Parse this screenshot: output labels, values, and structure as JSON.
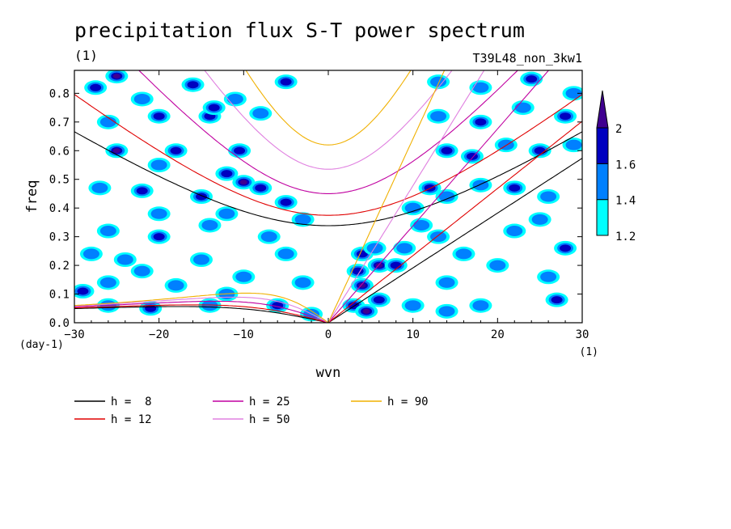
{
  "chart_data": {
    "type": "heatmap",
    "title": "precipitation flux S-T power spectrum",
    "subtitle_left": "(1)",
    "subtitle_right": "T39L48_non_3kw1",
    "xlabel": "wvn",
    "ylabel": "freq",
    "x_unit": "(1)",
    "y_unit": "(day-1)",
    "xlim": [
      -30,
      30
    ],
    "ylim": [
      0,
      0.88
    ],
    "xticks": [
      -30,
      -20,
      -10,
      0,
      10,
      20,
      30
    ],
    "yticks": [
      0.0,
      0.1,
      0.2,
      0.3,
      0.4,
      0.5,
      0.6,
      0.7,
      0.8
    ],
    "colorbar": {
      "levels": [
        1.2,
        1.4,
        1.6,
        2
      ],
      "labels": [
        "1.2",
        "1.4",
        "1.6",
        "2"
      ],
      "colors": [
        "#00ffff",
        "#0080ff",
        "#0000c0",
        "#400090"
      ]
    },
    "contour_patches": [
      {
        "x": -27.5,
        "y": 0.82,
        "level": 3
      },
      {
        "x": -25,
        "y": 0.86,
        "level": 4
      },
      {
        "x": -22,
        "y": 0.78,
        "level": 2
      },
      {
        "x": -16,
        "y": 0.83,
        "level": 3
      },
      {
        "x": -11,
        "y": 0.78,
        "level": 2
      },
      {
        "x": -5,
        "y": 0.84,
        "level": 3
      },
      {
        "x": -26,
        "y": 0.7,
        "level": 2
      },
      {
        "x": -20,
        "y": 0.72,
        "level": 3
      },
      {
        "x": -14,
        "y": 0.72,
        "level": 3
      },
      {
        "x": -8,
        "y": 0.73,
        "level": 2
      },
      {
        "x": -13.5,
        "y": 0.75,
        "level": 3
      },
      {
        "x": -25,
        "y": 0.6,
        "level": 4
      },
      {
        "x": -18,
        "y": 0.6,
        "level": 3
      },
      {
        "x": -10.5,
        "y": 0.6,
        "level": 3
      },
      {
        "x": -20,
        "y": 0.55,
        "level": 2
      },
      {
        "x": -12,
        "y": 0.52,
        "level": 3
      },
      {
        "x": -22,
        "y": 0.46,
        "level": 3
      },
      {
        "x": -27,
        "y": 0.47,
        "level": 2
      },
      {
        "x": -15,
        "y": 0.44,
        "level": 3
      },
      {
        "x": -8,
        "y": 0.47,
        "level": 3
      },
      {
        "x": -10,
        "y": 0.49,
        "level": 4
      },
      {
        "x": -5,
        "y": 0.42,
        "level": 3
      },
      {
        "x": -20,
        "y": 0.38,
        "level": 2
      },
      {
        "x": -12,
        "y": 0.38,
        "level": 2
      },
      {
        "x": -3,
        "y": 0.36,
        "level": 2
      },
      {
        "x": -14,
        "y": 0.34,
        "level": 2
      },
      {
        "x": -26,
        "y": 0.32,
        "level": 2
      },
      {
        "x": -7,
        "y": 0.3,
        "level": 2
      },
      {
        "x": -20,
        "y": 0.3,
        "level": 3
      },
      {
        "x": -28,
        "y": 0.24,
        "level": 2
      },
      {
        "x": -15,
        "y": 0.22,
        "level": 2
      },
      {
        "x": -24,
        "y": 0.22,
        "level": 2
      },
      {
        "x": -5,
        "y": 0.24,
        "level": 2
      },
      {
        "x": -10,
        "y": 0.16,
        "level": 2
      },
      {
        "x": -22,
        "y": 0.18,
        "level": 2
      },
      {
        "x": -26,
        "y": 0.14,
        "level": 2
      },
      {
        "x": -18,
        "y": 0.13,
        "level": 2
      },
      {
        "x": -3,
        "y": 0.14,
        "level": 2
      },
      {
        "x": -29,
        "y": 0.11,
        "level": 3
      },
      {
        "x": -12,
        "y": 0.1,
        "level": 2
      },
      {
        "x": -26,
        "y": 0.06,
        "level": 2
      },
      {
        "x": -21,
        "y": 0.05,
        "level": 3
      },
      {
        "x": -14,
        "y": 0.06,
        "level": 2
      },
      {
        "x": -6,
        "y": 0.06,
        "level": 3
      },
      {
        "x": -2,
        "y": 0.03,
        "level": 2
      },
      {
        "x": 3,
        "y": 0.06,
        "level": 3
      },
      {
        "x": 4.5,
        "y": 0.04,
        "level": 4
      },
      {
        "x": 6,
        "y": 0.08,
        "level": 3
      },
      {
        "x": 4,
        "y": 0.13,
        "level": 4
      },
      {
        "x": 3.5,
        "y": 0.18,
        "level": 3
      },
      {
        "x": 6,
        "y": 0.2,
        "level": 4
      },
      {
        "x": 4,
        "y": 0.24,
        "level": 3
      },
      {
        "x": 5.5,
        "y": 0.26,
        "level": 2
      },
      {
        "x": 8,
        "y": 0.2,
        "level": 3
      },
      {
        "x": 9,
        "y": 0.26,
        "level": 2
      },
      {
        "x": 10,
        "y": 0.06,
        "level": 2
      },
      {
        "x": 14,
        "y": 0.14,
        "level": 2
      },
      {
        "x": 16,
        "y": 0.24,
        "level": 2
      },
      {
        "x": 13,
        "y": 0.3,
        "level": 2
      },
      {
        "x": 20,
        "y": 0.2,
        "level": 2
      },
      {
        "x": 26,
        "y": 0.16,
        "level": 2
      },
      {
        "x": 28,
        "y": 0.26,
        "level": 3
      },
      {
        "x": 22,
        "y": 0.32,
        "level": 2
      },
      {
        "x": 27,
        "y": 0.08,
        "level": 3
      },
      {
        "x": 18,
        "y": 0.06,
        "level": 2
      },
      {
        "x": 14,
        "y": 0.04,
        "level": 2
      },
      {
        "x": 10,
        "y": 0.4,
        "level": 2
      },
      {
        "x": 12,
        "y": 0.47,
        "level": 3
      },
      {
        "x": 14,
        "y": 0.44,
        "level": 2
      },
      {
        "x": 18,
        "y": 0.48,
        "level": 2
      },
      {
        "x": 22,
        "y": 0.47,
        "level": 3
      },
      {
        "x": 26,
        "y": 0.44,
        "level": 2
      },
      {
        "x": 14,
        "y": 0.6,
        "level": 3
      },
      {
        "x": 17,
        "y": 0.58,
        "level": 3
      },
      {
        "x": 21,
        "y": 0.62,
        "level": 2
      },
      {
        "x": 25,
        "y": 0.6,
        "level": 3
      },
      {
        "x": 29,
        "y": 0.62,
        "level": 2
      },
      {
        "x": 13,
        "y": 0.72,
        "level": 2
      },
      {
        "x": 18,
        "y": 0.7,
        "level": 3
      },
      {
        "x": 23,
        "y": 0.75,
        "level": 2
      },
      {
        "x": 28,
        "y": 0.72,
        "level": 3
      },
      {
        "x": 13,
        "y": 0.84,
        "level": 2
      },
      {
        "x": 18,
        "y": 0.82,
        "level": 2
      },
      {
        "x": 24,
        "y": 0.85,
        "level": 3
      },
      {
        "x": 29,
        "y": 0.8,
        "level": 2
      },
      {
        "x": 11,
        "y": 0.34,
        "level": 2
      },
      {
        "x": 25,
        "y": 0.36,
        "level": 2
      }
    ],
    "dispersion_curves": [
      {
        "name": "h =  8",
        "h": 8,
        "color": "#000000"
      },
      {
        "name": "h = 12",
        "h": 12,
        "color": "#e00000"
      },
      {
        "name": "h = 25",
        "h": 25,
        "color": "#c000a0"
      },
      {
        "name": "h = 50",
        "h": 50,
        "color": "#e080e0"
      },
      {
        "name": "h = 90",
        "h": 90,
        "color": "#f0b000"
      }
    ],
    "legend": [
      "h =  8",
      "h = 12",
      "h = 25",
      "h = 50",
      "h = 90"
    ]
  }
}
